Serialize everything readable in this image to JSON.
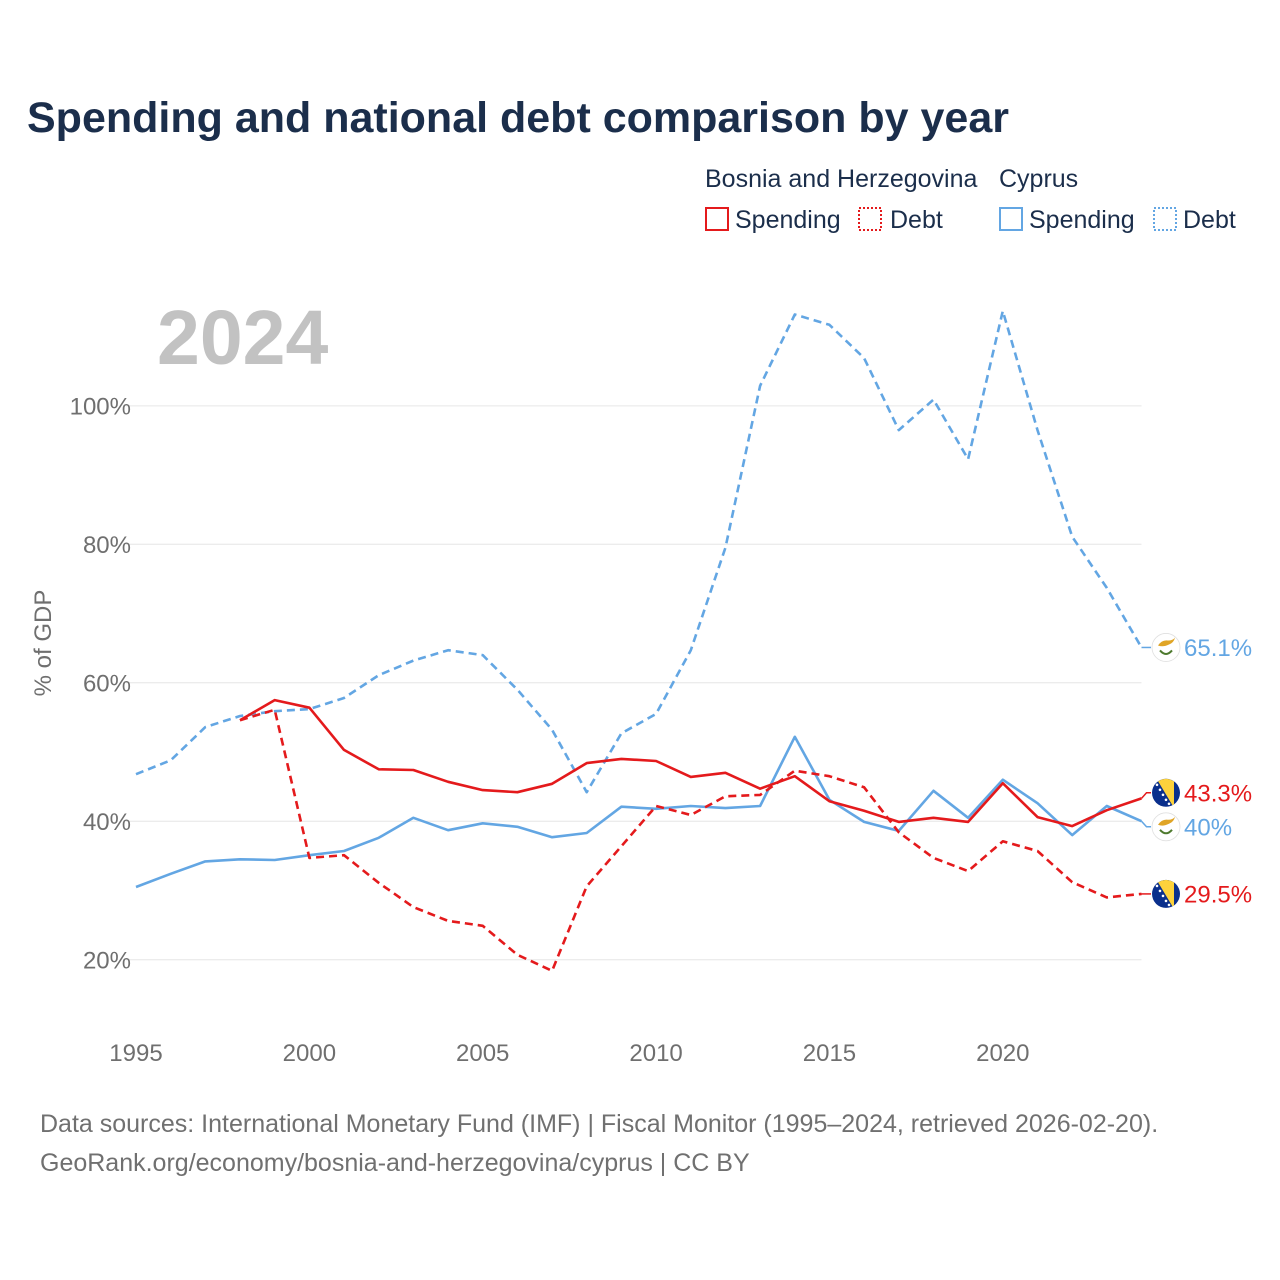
{
  "chart_data": {
    "type": "line",
    "title": "Spending and national debt comparison by year",
    "ylabel": "% of GDP",
    "xlim": [
      1995,
      2024
    ],
    "ylim": [
      11,
      115
    ],
    "grid": true,
    "x_ticks": [
      1995,
      2000,
      2005,
      2010,
      2015,
      2020
    ],
    "x_tick_labels": [
      "1995",
      "2000",
      "2005",
      "2010",
      "2015",
      "2020"
    ],
    "y_ticks": [
      20,
      40,
      60,
      80,
      100
    ],
    "y_tick_labels": [
      "20%",
      "40%",
      "60%",
      "80%",
      "100%"
    ],
    "year_label": "2024",
    "series": [
      {
        "country": "Bosnia and Herzegovina",
        "name": "Spending",
        "dashed": false,
        "color": "#e41a1c",
        "flag_icon": "bosnia-flag-icon",
        "x": [
          1998,
          1999,
          2000,
          2001,
          2002,
          2003,
          2004,
          2005,
          2006,
          2007,
          2008,
          2009,
          2010,
          2011,
          2012,
          2013,
          2014,
          2015,
          2016,
          2017,
          2018,
          2019,
          2020,
          2021,
          2022,
          2023,
          2024
        ],
        "values": [
          54.6,
          57.5,
          56.4,
          50.3,
          47.5,
          47.4,
          45.7,
          44.5,
          44.2,
          45.4,
          48.4,
          49.0,
          48.7,
          46.4,
          47.0,
          44.7,
          46.5,
          42.9,
          41.5,
          39.9,
          40.5,
          39.9,
          45.5,
          40.6,
          39.3,
          41.6,
          43.3
        ],
        "end_label": "43.3%"
      },
      {
        "country": "Bosnia and Herzegovina",
        "name": "Debt",
        "dashed": true,
        "color": "#e41a1c",
        "flag_icon": "bosnia-flag-icon",
        "x": [
          1998,
          1999,
          2000,
          2001,
          2002,
          2003,
          2004,
          2005,
          2006,
          2007,
          2008,
          2009,
          2010,
          2011,
          2012,
          2013,
          2014,
          2015,
          2016,
          2017,
          2018,
          2019,
          2020,
          2021,
          2022,
          2023,
          2024
        ],
        "values": [
          54.6,
          56.1,
          34.7,
          35.1,
          31.1,
          27.6,
          25.6,
          24.9,
          20.7,
          18.4,
          30.6,
          36.4,
          42.2,
          40.9,
          43.6,
          43.8,
          47.3,
          46.5,
          44.9,
          38.4,
          34.7,
          32.8,
          37.1,
          35.7,
          31.2,
          29.0,
          29.5
        ],
        "end_label": "29.5%"
      },
      {
        "country": "Cyprus",
        "name": "Spending",
        "dashed": false,
        "color": "#63a6e3",
        "flag_icon": "cyprus-flag-icon",
        "x": [
          1995,
          1996,
          1997,
          1998,
          1999,
          2000,
          2001,
          2002,
          2003,
          2004,
          2005,
          2006,
          2007,
          2008,
          2009,
          2010,
          2011,
          2012,
          2013,
          2014,
          2015,
          2016,
          2017,
          2018,
          2019,
          2020,
          2021,
          2022,
          2023,
          2024
        ],
        "values": [
          30.5,
          32.4,
          34.2,
          34.5,
          34.4,
          35.1,
          35.7,
          37.6,
          40.5,
          38.7,
          39.7,
          39.2,
          37.7,
          38.3,
          42.1,
          41.8,
          42.2,
          41.9,
          42.2,
          52.2,
          43.1,
          39.9,
          38.6,
          44.4,
          40.5,
          46.0,
          42.6,
          38.0,
          42.2,
          40.0
        ],
        "end_label": "40%"
      },
      {
        "country": "Cyprus",
        "name": "Debt",
        "dashed": true,
        "color": "#63a6e3",
        "flag_icon": "cyprus-flag-icon",
        "x": [
          1995,
          1996,
          1997,
          1998,
          1999,
          2000,
          2001,
          2002,
          2003,
          2004,
          2005,
          2006,
          2007,
          2008,
          2009,
          2010,
          2011,
          2012,
          2013,
          2014,
          2015,
          2016,
          2017,
          2018,
          2019,
          2020,
          2021,
          2022,
          2023,
          2024
        ],
        "values": [
          46.8,
          48.8,
          53.6,
          55.2,
          55.9,
          56.2,
          57.8,
          61.1,
          63.2,
          64.7,
          64.0,
          59.0,
          53.2,
          44.2,
          52.7,
          55.5,
          64.7,
          79.5,
          102.9,
          113.2,
          111.7,
          106.9,
          96.5,
          100.9,
          92.3,
          113.7,
          96.5,
          81.1,
          73.7,
          65.1
        ],
        "end_label": "65.1%"
      }
    ]
  },
  "footer": {
    "sources": "Data sources: International Monetary Fund (IMF) | Fiscal Monitor (1995–2024, retrieved 2026-02-20).",
    "attribution": "GeoRank.org/economy/bosnia-and-herzegovina/cyprus | CC BY"
  }
}
